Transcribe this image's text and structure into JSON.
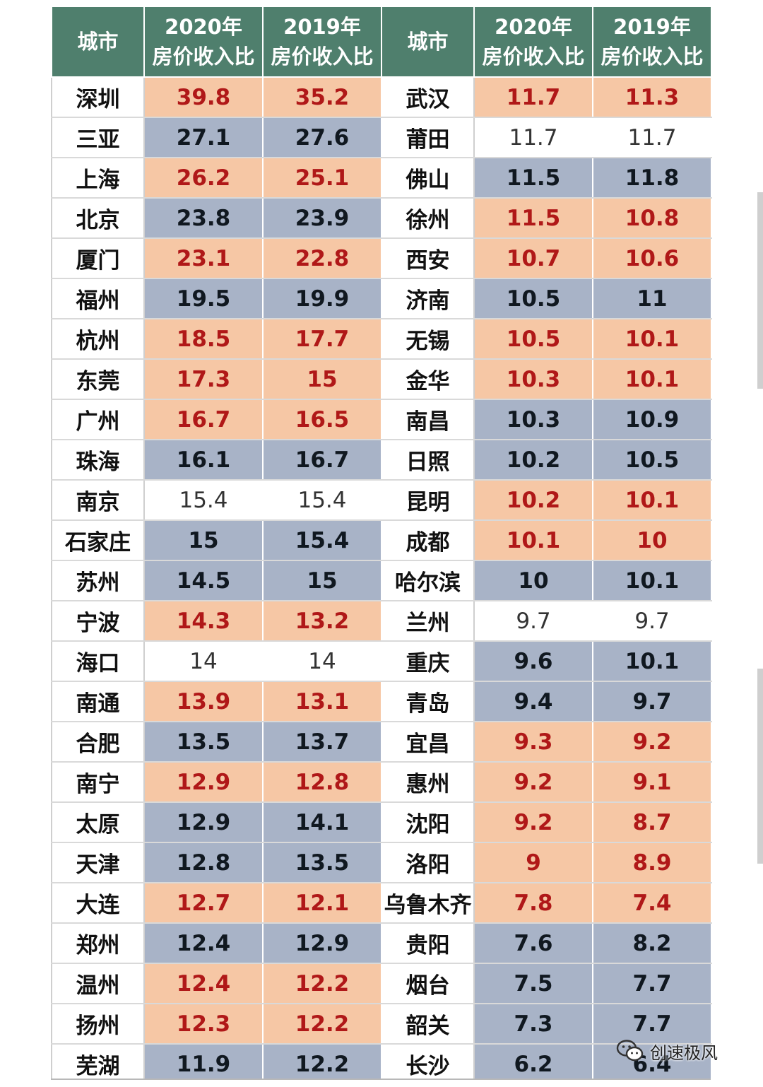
{
  "table": {
    "headers": [
      {
        "line1": "城市",
        "line2": ""
      },
      {
        "line1": "2020年",
        "line2": "房价收入比"
      },
      {
        "line1": "2019年",
        "line2": "房价收入比"
      },
      {
        "line1": "城市",
        "line2": ""
      },
      {
        "line1": "2020年",
        "line2": "房价收入比"
      },
      {
        "line1": "2019年",
        "line2": "房价收入比"
      }
    ],
    "rows": [
      [
        {
          "t": "深圳"
        },
        {
          "t": "39.8",
          "s": "up"
        },
        {
          "t": "35.2",
          "s": "up"
        },
        {
          "t": "武汉"
        },
        {
          "t": "11.7",
          "s": "up"
        },
        {
          "t": "11.3",
          "s": "up"
        }
      ],
      [
        {
          "t": "三亚"
        },
        {
          "t": "27.1",
          "s": "down"
        },
        {
          "t": "27.6",
          "s": "down"
        },
        {
          "t": "莆田"
        },
        {
          "t": "11.7",
          "s": "same"
        },
        {
          "t": "11.7",
          "s": "same"
        }
      ],
      [
        {
          "t": "上海"
        },
        {
          "t": "26.2",
          "s": "up"
        },
        {
          "t": "25.1",
          "s": "up"
        },
        {
          "t": "佛山"
        },
        {
          "t": "11.5",
          "s": "down"
        },
        {
          "t": "11.8",
          "s": "down"
        }
      ],
      [
        {
          "t": "北京"
        },
        {
          "t": "23.8",
          "s": "down"
        },
        {
          "t": "23.9",
          "s": "down"
        },
        {
          "t": "徐州"
        },
        {
          "t": "11.5",
          "s": "up"
        },
        {
          "t": "10.8",
          "s": "up"
        }
      ],
      [
        {
          "t": "厦门"
        },
        {
          "t": "23.1",
          "s": "up"
        },
        {
          "t": "22.8",
          "s": "up"
        },
        {
          "t": "西安"
        },
        {
          "t": "10.7",
          "s": "up"
        },
        {
          "t": "10.6",
          "s": "up"
        }
      ],
      [
        {
          "t": "福州"
        },
        {
          "t": "19.5",
          "s": "down"
        },
        {
          "t": "19.9",
          "s": "down"
        },
        {
          "t": "济南"
        },
        {
          "t": "10.5",
          "s": "down"
        },
        {
          "t": "11",
          "s": "down"
        }
      ],
      [
        {
          "t": "杭州"
        },
        {
          "t": "18.5",
          "s": "up"
        },
        {
          "t": "17.7",
          "s": "up"
        },
        {
          "t": "无锡"
        },
        {
          "t": "10.5",
          "s": "up"
        },
        {
          "t": "10.1",
          "s": "up"
        }
      ],
      [
        {
          "t": "东莞"
        },
        {
          "t": "17.3",
          "s": "up"
        },
        {
          "t": "15",
          "s": "up"
        },
        {
          "t": "金华"
        },
        {
          "t": "10.3",
          "s": "up"
        },
        {
          "t": "10.1",
          "s": "up"
        }
      ],
      [
        {
          "t": "广州"
        },
        {
          "t": "16.7",
          "s": "up"
        },
        {
          "t": "16.5",
          "s": "up"
        },
        {
          "t": "南昌"
        },
        {
          "t": "10.3",
          "s": "down"
        },
        {
          "t": "10.9",
          "s": "down"
        }
      ],
      [
        {
          "t": "珠海"
        },
        {
          "t": "16.1",
          "s": "down"
        },
        {
          "t": "16.7",
          "s": "down"
        },
        {
          "t": "日照"
        },
        {
          "t": "10.2",
          "s": "down"
        },
        {
          "t": "10.5",
          "s": "down"
        }
      ],
      [
        {
          "t": "南京"
        },
        {
          "t": "15.4",
          "s": "same"
        },
        {
          "t": "15.4",
          "s": "same"
        },
        {
          "t": "昆明"
        },
        {
          "t": "10.2",
          "s": "up"
        },
        {
          "t": "10.1",
          "s": "up"
        }
      ],
      [
        {
          "t": "石家庄"
        },
        {
          "t": "15",
          "s": "down"
        },
        {
          "t": "15.4",
          "s": "down"
        },
        {
          "t": "成都"
        },
        {
          "t": "10.1",
          "s": "up"
        },
        {
          "t": "10",
          "s": "up"
        }
      ],
      [
        {
          "t": "苏州"
        },
        {
          "t": "14.5",
          "s": "down"
        },
        {
          "t": "15",
          "s": "down"
        },
        {
          "t": "哈尔滨"
        },
        {
          "t": "10",
          "s": "down"
        },
        {
          "t": "10.1",
          "s": "down"
        }
      ],
      [
        {
          "t": "宁波"
        },
        {
          "t": "14.3",
          "s": "up"
        },
        {
          "t": "13.2",
          "s": "up"
        },
        {
          "t": "兰州"
        },
        {
          "t": "9.7",
          "s": "same"
        },
        {
          "t": "9.7",
          "s": "same"
        }
      ],
      [
        {
          "t": "海口"
        },
        {
          "t": "14",
          "s": "same"
        },
        {
          "t": "14",
          "s": "same"
        },
        {
          "t": "重庆"
        },
        {
          "t": "9.6",
          "s": "down"
        },
        {
          "t": "10.1",
          "s": "down"
        }
      ],
      [
        {
          "t": "南通"
        },
        {
          "t": "13.9",
          "s": "up"
        },
        {
          "t": "13.1",
          "s": "up"
        },
        {
          "t": "青岛"
        },
        {
          "t": "9.4",
          "s": "down"
        },
        {
          "t": "9.7",
          "s": "down"
        }
      ],
      [
        {
          "t": "合肥"
        },
        {
          "t": "13.5",
          "s": "down"
        },
        {
          "t": "13.7",
          "s": "down"
        },
        {
          "t": "宜昌"
        },
        {
          "t": "9.3",
          "s": "up"
        },
        {
          "t": "9.2",
          "s": "up"
        }
      ],
      [
        {
          "t": "南宁"
        },
        {
          "t": "12.9",
          "s": "up"
        },
        {
          "t": "12.8",
          "s": "up"
        },
        {
          "t": "惠州"
        },
        {
          "t": "9.2",
          "s": "up"
        },
        {
          "t": "9.1",
          "s": "up"
        }
      ],
      [
        {
          "t": "太原"
        },
        {
          "t": "12.9",
          "s": "down"
        },
        {
          "t": "14.1",
          "s": "down"
        },
        {
          "t": "沈阳"
        },
        {
          "t": "9.2",
          "s": "up"
        },
        {
          "t": "8.7",
          "s": "up"
        }
      ],
      [
        {
          "t": "天津"
        },
        {
          "t": "12.8",
          "s": "down"
        },
        {
          "t": "13.5",
          "s": "down"
        },
        {
          "t": "洛阳"
        },
        {
          "t": "9",
          "s": "up"
        },
        {
          "t": "8.9",
          "s": "up"
        }
      ],
      [
        {
          "t": "大连"
        },
        {
          "t": "12.7",
          "s": "up"
        },
        {
          "t": "12.1",
          "s": "up"
        },
        {
          "t": "乌鲁木齐"
        },
        {
          "t": "7.8",
          "s": "up"
        },
        {
          "t": "7.4",
          "s": "up"
        }
      ],
      [
        {
          "t": "郑州"
        },
        {
          "t": "12.4",
          "s": "down"
        },
        {
          "t": "12.9",
          "s": "down"
        },
        {
          "t": "贵阳"
        },
        {
          "t": "7.6",
          "s": "down"
        },
        {
          "t": "8.2",
          "s": "down"
        }
      ],
      [
        {
          "t": "温州"
        },
        {
          "t": "12.4",
          "s": "up"
        },
        {
          "t": "12.2",
          "s": "up"
        },
        {
          "t": "烟台"
        },
        {
          "t": "7.5",
          "s": "down"
        },
        {
          "t": "7.7",
          "s": "down"
        }
      ],
      [
        {
          "t": "扬州"
        },
        {
          "t": "12.3",
          "s": "up"
        },
        {
          "t": "12.2",
          "s": "up"
        },
        {
          "t": "韶关"
        },
        {
          "t": "7.3",
          "s": "down"
        },
        {
          "t": "7.7",
          "s": "down"
        }
      ],
      [
        {
          "t": "芜湖"
        },
        {
          "t": "11.9",
          "s": "down"
        },
        {
          "t": "12.2",
          "s": "down"
        },
        {
          "t": "长沙"
        },
        {
          "t": "6.2",
          "s": "down"
        },
        {
          "t": "6.4",
          "s": "down"
        }
      ]
    ]
  },
  "colors": {
    "header_bg": "#4f7f6d",
    "increase_bg": "#f6c7a5",
    "increase_text": "#b01818",
    "decrease_bg": "#a8b3c7",
    "decrease_text": "#101820",
    "unchanged_bg": "#ffffff"
  },
  "watermark": {
    "icon": "wechat-icon",
    "text": "创速极风"
  }
}
